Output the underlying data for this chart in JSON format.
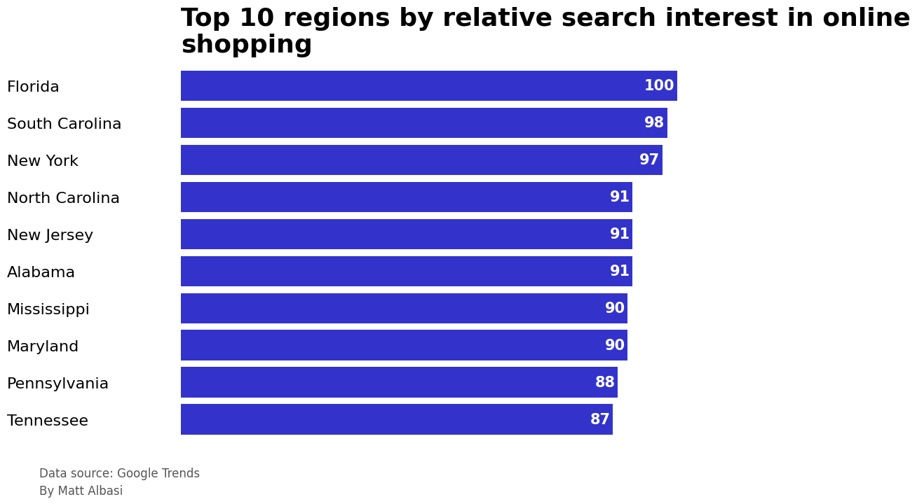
{
  "title": "Top 10 regions by relative search interest in online\nshopping",
  "regions": [
    "Florida",
    "South Carolina",
    "New York",
    "North Carolina",
    "New Jersey",
    "Alabama",
    "Mississippi",
    "Maryland",
    "Pennsylvania",
    "Tennessee"
  ],
  "values": [
    100,
    98,
    97,
    91,
    91,
    91,
    90,
    90,
    88,
    87
  ],
  "bar_color": "#3333cc",
  "label_color": "#ffffff",
  "title_color": "#000000",
  "background_color": "#ffffff",
  "footnote": "Data source: Google Trends\nBy Matt Albasi",
  "title_fontsize": 26,
  "label_fontsize": 15,
  "ytick_fontsize": 16,
  "footnote_fontsize": 12,
  "footnote_color": "#555555",
  "xlim": [
    0,
    107
  ],
  "bar_height": 0.82
}
